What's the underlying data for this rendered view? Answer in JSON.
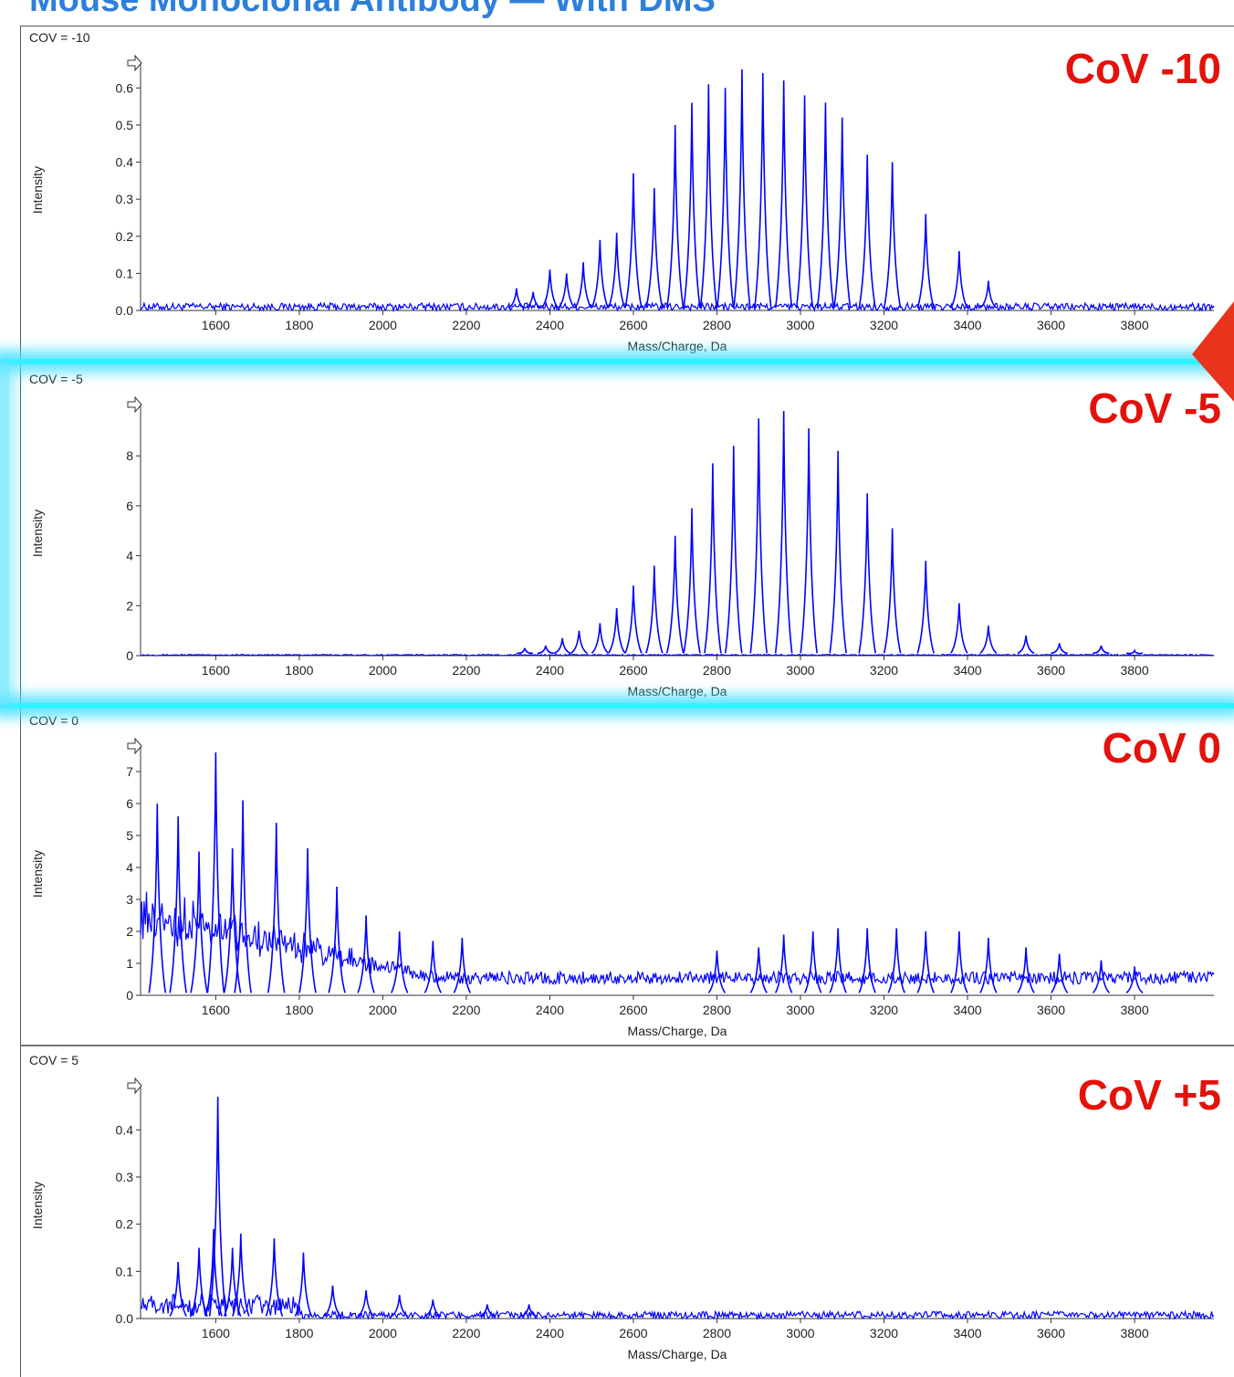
{
  "header": {
    "title": "Mouse Monoclonal Antibody — With DMS"
  },
  "colors": {
    "trace": "#0000ff",
    "badge": "#e3120b",
    "glow": "#2ff2ff",
    "title": "#2e7fd9"
  },
  "chart_data": [
    {
      "type": "line",
      "panel_label": "COV = -10",
      "badge": "CoV -10",
      "xlabel": "Mass/Charge, Da",
      "ylabel": "Intensity",
      "xlim": [
        1420,
        3990
      ],
      "ylim": [
        0,
        0.65
      ],
      "xticks": [
        1600,
        1800,
        2000,
        2200,
        2400,
        2600,
        2800,
        3000,
        3200,
        3400,
        3600,
        3800
      ],
      "yticks": [
        0.0,
        0.1,
        0.2,
        0.3,
        0.4,
        0.5,
        0.6
      ],
      "ytick_labels": [
        "0.0",
        "0.1",
        "0.2",
        "0.3",
        "0.4",
        "0.5",
        "0.6"
      ],
      "noise_level": 0.02,
      "peaks_x": [
        2320,
        2360,
        2400,
        2440,
        2480,
        2520,
        2560,
        2600,
        2650,
        2700,
        2740,
        2780,
        2820,
        2860,
        2910,
        2960,
        3010,
        3060,
        3100,
        3160,
        3220,
        3300,
        3380,
        3450
      ],
      "peaks_y": [
        0.06,
        0.05,
        0.11,
        0.1,
        0.13,
        0.19,
        0.21,
        0.37,
        0.33,
        0.5,
        0.56,
        0.61,
        0.6,
        0.65,
        0.64,
        0.62,
        0.58,
        0.56,
        0.52,
        0.42,
        0.4,
        0.26,
        0.16,
        0.08
      ]
    },
    {
      "type": "line",
      "panel_label": "COV = -5",
      "badge": "CoV -5",
      "xlabel": "Mass/Charge, Da",
      "ylabel": "Intensity",
      "xlim": [
        1420,
        3990
      ],
      "ylim": [
        0,
        9.8
      ],
      "xticks": [
        1600,
        1800,
        2000,
        2200,
        2400,
        2600,
        2800,
        3000,
        3200,
        3400,
        3600,
        3800
      ],
      "yticks": [
        0,
        2,
        4,
        6,
        8
      ],
      "ytick_labels": [
        "0",
        "2",
        "4",
        "6",
        "8"
      ],
      "noise_level": 0.05,
      "peaks_x": [
        2340,
        2390,
        2430,
        2470,
        2520,
        2560,
        2600,
        2650,
        2700,
        2740,
        2790,
        2840,
        2900,
        2960,
        3020,
        3090,
        3160,
        3220,
        3300,
        3380,
        3450,
        3540,
        3620,
        3720,
        3800
      ],
      "peaks_y": [
        0.3,
        0.4,
        0.7,
        1.0,
        1.3,
        1.9,
        2.8,
        3.6,
        4.8,
        5.9,
        7.7,
        8.4,
        9.5,
        9.8,
        9.1,
        8.2,
        6.5,
        5.1,
        3.8,
        2.1,
        1.2,
        0.8,
        0.5,
        0.4,
        0.2
      ]
    },
    {
      "type": "line",
      "panel_label": "COV = 0",
      "badge": "CoV 0",
      "xlabel": "Mass/Charge, Da",
      "ylabel": "Intensity",
      "xlim": [
        1420,
        3990
      ],
      "ylim": [
        0,
        7.6
      ],
      "xticks": [
        1600,
        1800,
        2000,
        2200,
        2400,
        2600,
        2800,
        3000,
        3200,
        3400,
        3600,
        3800
      ],
      "yticks": [
        0,
        1,
        2,
        3,
        4,
        5,
        6,
        7
      ],
      "ytick_labels": [
        "0",
        "1",
        "2",
        "3",
        "4",
        "5",
        "6",
        "7"
      ],
      "noise_level": 0.8,
      "peaks_x": [
        1460,
        1510,
        1560,
        1600,
        1640,
        1665,
        1745,
        1820,
        1890,
        1960,
        2040,
        2120,
        2190,
        2800,
        2900,
        2960,
        3030,
        3090,
        3160,
        3230,
        3300,
        3380,
        3450,
        3540,
        3620,
        3720,
        3800
      ],
      "peaks_y": [
        6.0,
        5.6,
        4.5,
        7.6,
        4.6,
        6.1,
        5.4,
        4.6,
        3.4,
        2.5,
        2.0,
        1.7,
        1.8,
        1.4,
        1.5,
        1.9,
        2.0,
        2.1,
        2.1,
        2.1,
        2.0,
        2.0,
        1.8,
        1.5,
        1.3,
        1.1,
        0.9
      ]
    },
    {
      "type": "line",
      "panel_label": "COV = 5",
      "badge": "CoV +5",
      "xlabel": "Mass/Charge, Da",
      "ylabel": "Intensity",
      "xlim": [
        1420,
        3990
      ],
      "ylim": [
        0,
        0.48
      ],
      "xticks": [
        1600,
        1800,
        2000,
        2200,
        2400,
        2600,
        2800,
        3000,
        3200,
        3400,
        3600,
        3800
      ],
      "yticks": [
        0.0,
        0.1,
        0.2,
        0.3,
        0.4
      ],
      "ytick_labels": [
        "0.0",
        "0.1",
        "0.2",
        "0.3",
        "0.4"
      ],
      "noise_level": 0.015,
      "peaks_x": [
        1510,
        1560,
        1595,
        1605,
        1640,
        1660,
        1740,
        1810,
        1880,
        1960,
        2040,
        2120,
        2250,
        2350
      ],
      "peaks_y": [
        0.12,
        0.15,
        0.19,
        0.47,
        0.15,
        0.18,
        0.17,
        0.14,
        0.07,
        0.06,
        0.05,
        0.04,
        0.03,
        0.03
      ]
    }
  ]
}
